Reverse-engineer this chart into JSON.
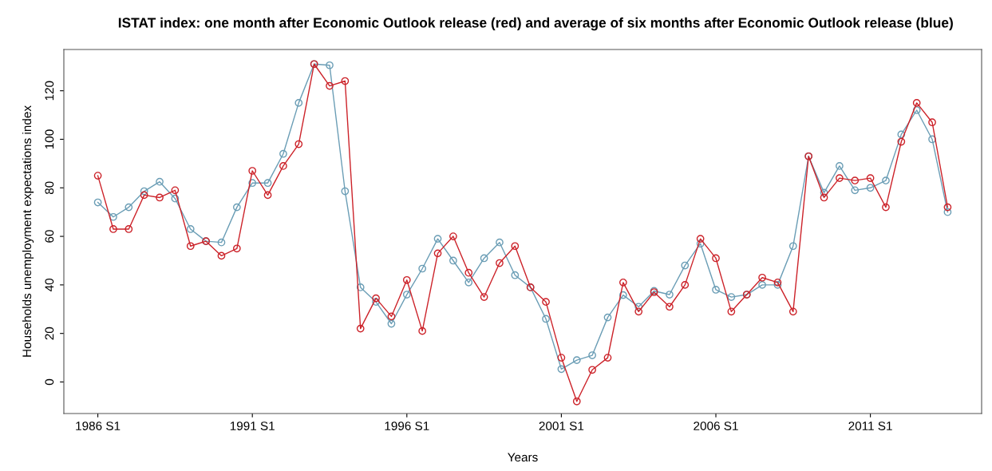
{
  "chart_data": {
    "type": "line",
    "title": "ISTAT index: one month after Economic Outlook release (red) and average of six months after Economic Outlook release (blue)",
    "xlabel": "Years",
    "ylabel": "Households unemployment expectations index",
    "categories": [
      "1986 S1",
      null,
      null,
      null,
      null,
      null,
      null,
      null,
      null,
      null,
      "1991 S1",
      null,
      null,
      null,
      null,
      null,
      null,
      null,
      null,
      null,
      "1996 S1",
      null,
      null,
      null,
      null,
      null,
      null,
      null,
      null,
      null,
      "2001 S1",
      null,
      null,
      null,
      null,
      null,
      null,
      null,
      null,
      null,
      "2006 S1",
      null,
      null,
      null,
      null,
      null,
      null,
      null,
      null,
      null,
      "2011 S1",
      null,
      null,
      null,
      null,
      null
    ],
    "series": [
      {
        "color": "#6a9db5",
        "values": [
          74,
          68,
          72,
          78.6,
          82.5,
          75.6,
          63,
          58,
          57.5,
          72,
          82,
          82,
          94,
          115,
          131,
          130.5,
          78.6,
          39,
          33,
          24,
          36,
          46.7,
          59,
          50,
          41,
          51,
          57.5,
          44,
          39,
          26,
          5.3,
          9,
          11,
          26.6,
          35.8,
          31,
          37.5,
          36,
          48,
          57,
          38,
          35,
          36,
          40,
          40,
          56,
          93,
          78,
          89,
          79,
          80,
          83,
          102,
          112,
          100,
          70
        ]
      },
      {
        "color": "#cc2229",
        "values": [
          85,
          63,
          63,
          77,
          76,
          79,
          56,
          58,
          52,
          55,
          87,
          77,
          89,
          98,
          131,
          122,
          124,
          22,
          34.5,
          27,
          42,
          21,
          53,
          60,
          45,
          35,
          49,
          56,
          39,
          33,
          10,
          -8,
          5,
          10,
          41,
          29,
          37,
          31,
          40,
          59,
          51,
          29,
          36,
          43,
          41,
          29,
          93,
          76,
          84,
          83,
          84,
          72,
          99,
          115,
          107,
          72
        ]
      }
    ],
    "ylim": [
      -13,
      137
    ],
    "yticks": [
      0,
      20,
      40,
      60,
      80,
      100,
      120
    ],
    "marker": "circle",
    "line_style": "solid",
    "grid": false
  }
}
